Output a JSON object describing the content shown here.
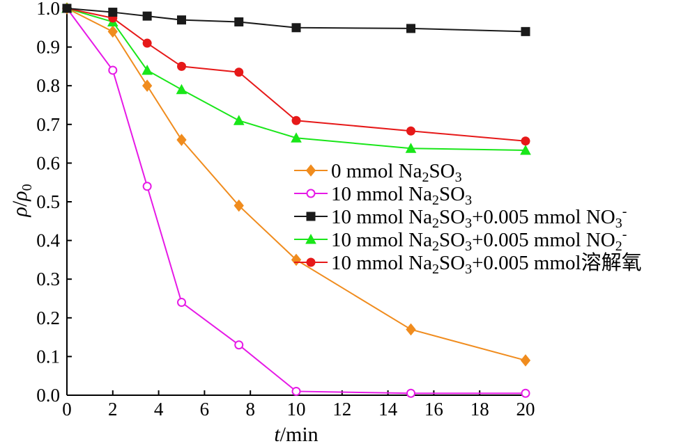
{
  "chart_data": {
    "type": "line",
    "xlabel": {
      "italic": "t",
      "rest": "/min"
    },
    "ylabel": {
      "italic": "ρ",
      "slash": "/",
      "italic2": "ρ",
      "sub": "0"
    },
    "xlim": [
      0,
      20
    ],
    "ylim": [
      0.0,
      1.0
    ],
    "xticks": [
      0,
      2,
      4,
      6,
      8,
      10,
      12,
      14,
      16,
      18,
      20
    ],
    "xtick_labels": [
      "0",
      "2",
      "4",
      "6",
      "8",
      "10",
      "12",
      "14",
      "16",
      "18",
      "20"
    ],
    "yticks": [
      0.0,
      0.1,
      0.2,
      0.3,
      0.4,
      0.5,
      0.6,
      0.7,
      0.8,
      0.9,
      1.0
    ],
    "ytick_labels": [
      "0.0",
      "0.1",
      "0.2",
      "0.3",
      "0.4",
      "0.5",
      "0.6",
      "0.7",
      "0.8",
      "0.9",
      "1.0"
    ],
    "grid": false,
    "legend_position": "center-right",
    "x": [
      0,
      2,
      3.5,
      5,
      7.5,
      10,
      15,
      20
    ],
    "series": [
      {
        "name": "0 mmol Na2SO3",
        "label_parts": [
          {
            "t": "0 mmol Na"
          },
          {
            "t": "2",
            "sub": true
          },
          {
            "t": "SO"
          },
          {
            "t": "3",
            "sub": true
          }
        ],
        "color": "#f08c1e",
        "marker": "diamond",
        "filled": true,
        "values": [
          1.0,
          0.94,
          0.8,
          0.66,
          0.49,
          0.35,
          0.17,
          0.09
        ]
      },
      {
        "name": "10 mmol Na2SO3",
        "label_parts": [
          {
            "t": "10 mmol Na"
          },
          {
            "t": "2",
            "sub": true
          },
          {
            "t": "SO"
          },
          {
            "t": "3",
            "sub": true
          }
        ],
        "color": "#e619e6",
        "marker": "circle",
        "filled": false,
        "values": [
          1.0,
          0.84,
          0.54,
          0.24,
          0.13,
          0.01,
          0.005,
          0.005
        ]
      },
      {
        "name": "10 mmol Na2SO3+0.005 mmol NO3-",
        "label_parts": [
          {
            "t": "10 mmol Na"
          },
          {
            "t": "2",
            "sub": true
          },
          {
            "t": "SO"
          },
          {
            "t": "3",
            "sub": true
          },
          {
            "t": "+0.005 mmol NO"
          },
          {
            "t": "3",
            "sub": true
          },
          {
            "t": "-",
            "sup": true
          }
        ],
        "color": "#1a1a1a",
        "marker": "square",
        "filled": true,
        "values": [
          1.0,
          0.99,
          0.98,
          0.97,
          0.965,
          0.95,
          0.948,
          0.94
        ]
      },
      {
        "name": "10 mmol Na2SO3+0.005 mmol NO2-",
        "label_parts": [
          {
            "t": "10 mmol Na"
          },
          {
            "t": "2",
            "sub": true
          },
          {
            "t": "SO"
          },
          {
            "t": "3",
            "sub": true
          },
          {
            "t": "+0.005 mmol NO"
          },
          {
            "t": "2",
            "sub": true
          },
          {
            "t": "-",
            "sup": true
          }
        ],
        "color": "#19e619",
        "marker": "triangle",
        "filled": true,
        "values": [
          1.0,
          0.965,
          0.84,
          0.79,
          0.71,
          0.665,
          0.638,
          0.633
        ]
      },
      {
        "name": "10 mmol Na2SO3+0.005 mmol溶解氧",
        "label_parts": [
          {
            "t": "10 mmol Na"
          },
          {
            "t": "2",
            "sub": true
          },
          {
            "t": "SO"
          },
          {
            "t": "3",
            "sub": true
          },
          {
            "t": "+0.005 mmol溶解氧"
          }
        ],
        "color": "#e61919",
        "marker": "circle",
        "filled": true,
        "values": [
          1.0,
          0.975,
          0.91,
          0.85,
          0.835,
          0.71,
          0.683,
          0.657
        ]
      }
    ]
  }
}
